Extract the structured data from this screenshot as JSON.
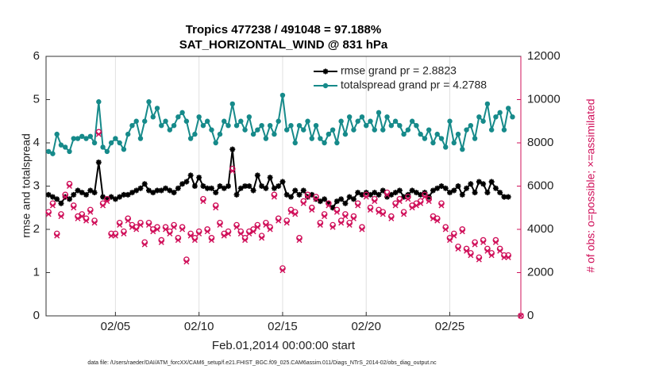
{
  "chart_data": {
    "type": "line",
    "title": "Tropics 477238 / 491048 = 97.188%",
    "subtitle": "SAT_HORIZONTAL_WIND @ 831 hPa",
    "xlabel": "Feb.01,2014 00:00:00 start",
    "ylabel": "rmse and totalspread",
    "y2label": "# of obs: o=possible; ×=assimilated",
    "footnote": "data file: /Users/raeder/DAI/ATM_forcXX/CAM6_setup/f.e21.FHIST_BGC.f09_025.CAM6assim.011/Diags_NTrS_2014-02/obs_diag_output.nc",
    "grid": "x",
    "legend": "top-right",
    "xlim": [
      0.85,
      29.25
    ],
    "xticks": [
      {
        "value": 5,
        "label": "02/05"
      },
      {
        "value": 10,
        "label": "02/10"
      },
      {
        "value": 15,
        "label": "02/15"
      },
      {
        "value": 20,
        "label": "02/20"
      },
      {
        "value": 25,
        "label": "02/25"
      }
    ],
    "ylim": [
      0,
      6
    ],
    "yticks": [
      0,
      1,
      2,
      3,
      4,
      5,
      6
    ],
    "y2lim": [
      0,
      12000
    ],
    "y2ticks": [
      0,
      2000,
      4000,
      6000,
      8000,
      10000,
      12000
    ],
    "x": [
      1,
      1.25,
      1.5,
      1.75,
      2,
      2.25,
      2.5,
      2.75,
      3,
      3.25,
      3.5,
      3.75,
      4,
      4.25,
      4.5,
      4.75,
      5,
      5.25,
      5.5,
      5.75,
      6,
      6.25,
      6.5,
      6.75,
      7,
      7.25,
      7.5,
      7.75,
      8,
      8.25,
      8.5,
      8.75,
      9,
      9.25,
      9.5,
      9.75,
      10,
      10.25,
      10.5,
      10.75,
      11,
      11.25,
      11.5,
      11.75,
      12,
      12.25,
      12.5,
      12.75,
      13,
      13.25,
      13.5,
      13.75,
      14,
      14.25,
      14.5,
      14.75,
      15,
      15.25,
      15.5,
      15.75,
      16,
      16.25,
      16.5,
      16.75,
      17,
      17.25,
      17.5,
      17.75,
      18,
      18.25,
      18.5,
      18.75,
      19,
      19.25,
      19.5,
      19.75,
      20,
      20.25,
      20.5,
      20.75,
      21,
      21.25,
      21.5,
      21.75,
      22,
      22.25,
      22.5,
      22.75,
      23,
      23.25,
      23.5,
      23.75,
      24,
      24.25,
      24.5,
      24.75,
      25,
      25.25,
      25.5,
      25.75,
      26,
      26.25,
      26.5,
      26.75,
      27,
      27.25,
      27.5,
      27.75,
      28,
      28.25,
      28.5,
      28.75,
      29,
      29.25
    ],
    "series": [
      {
        "name": "rmse grand pr = 2.8823",
        "color": "#000000",
        "marker": "star",
        "line": true,
        "values": [
          2.8,
          2.75,
          2.7,
          2.6,
          2.75,
          2.7,
          2.8,
          2.9,
          2.85,
          2.8,
          2.9,
          2.85,
          3.55,
          2.75,
          2.7,
          2.75,
          2.7,
          2.75,
          2.8,
          2.8,
          2.85,
          2.9,
          2.95,
          3.05,
          2.9,
          2.85,
          2.9,
          2.9,
          2.95,
          2.9,
          2.85,
          2.95,
          3.05,
          3.1,
          3.25,
          3.0,
          3.2,
          3.0,
          2.95,
          2.95,
          2.85,
          3.0,
          2.95,
          3.0,
          3.85,
          2.8,
          2.95,
          3.0,
          3.0,
          2.9,
          3.25,
          3.0,
          2.95,
          3.2,
          2.95,
          3.0,
          3.1,
          2.8,
          2.75,
          2.9,
          2.8,
          2.9,
          2.75,
          2.8,
          2.7,
          2.65,
          2.7,
          2.6,
          2.5,
          2.65,
          2.7,
          2.6,
          2.75,
          2.7,
          2.85,
          2.8,
          2.85,
          2.8,
          2.85,
          2.8,
          2.9,
          2.75,
          2.8,
          2.85,
          2.9,
          2.75,
          2.8,
          2.9,
          2.85,
          2.8,
          2.85,
          2.75,
          2.9,
          2.95,
          3.0,
          2.95,
          2.85,
          2.9,
          3.0,
          2.8,
          2.95,
          3.05,
          2.85,
          3.1,
          3.05,
          2.85,
          3.1,
          2.95,
          2.85,
          2.75,
          2.75,
          null,
          null,
          null
        ]
      },
      {
        "name": "totalspread grand pr = 4.2788",
        "color": "#168a8a",
        "marker": "circle",
        "line": true,
        "values": [
          3.8,
          3.75,
          4.2,
          3.95,
          3.9,
          3.8,
          4.1,
          4.1,
          4.15,
          4.1,
          4.15,
          4.0,
          4.95,
          3.9,
          3.8,
          4.0,
          4.1,
          4.0,
          3.85,
          4.2,
          4.4,
          4.5,
          4.1,
          4.5,
          4.95,
          4.6,
          4.8,
          4.4,
          4.5,
          4.3,
          4.4,
          4.6,
          4.7,
          4.5,
          4.1,
          4.2,
          4.6,
          4.4,
          4.5,
          4.3,
          4.0,
          4.2,
          4.5,
          4.4,
          4.9,
          4.4,
          4.5,
          4.3,
          4.6,
          4.2,
          4.3,
          4.4,
          4.1,
          4.4,
          4.2,
          4.5,
          5.1,
          4.3,
          4.4,
          4.0,
          4.4,
          4.3,
          4.5,
          4.1,
          4.4,
          4.1,
          4.0,
          4.2,
          4.3,
          4.0,
          4.5,
          4.2,
          4.6,
          4.3,
          4.5,
          4.6,
          4.4,
          4.5,
          4.3,
          4.7,
          4.3,
          4.6,
          4.4,
          4.5,
          4.4,
          4.2,
          4.3,
          4.5,
          4.4,
          4.2,
          4.1,
          4.3,
          4.0,
          4.2,
          4.1,
          3.9,
          4.5,
          4.0,
          4.2,
          3.85,
          4.3,
          4.4,
          4.1,
          4.6,
          4.5,
          4.9,
          4.3,
          4.6,
          4.7,
          4.3,
          4.8,
          4.6,
          null,
          null
        ]
      },
      {
        "color": "#d0105a",
        "marker": "circle-open",
        "line": false,
        "axis": "y2",
        "values": [
          4800,
          5200,
          3800,
          4700,
          5600,
          6100,
          5100,
          4600,
          4700,
          4500,
          4900,
          4400,
          8500,
          5200,
          5400,
          3800,
          3800,
          4300,
          3900,
          4500,
          4200,
          4100,
          4300,
          3400,
          4300,
          4000,
          4100,
          3500,
          4100,
          3900,
          4200,
          3600,
          4100,
          2600,
          3800,
          3600,
          3900,
          5400,
          4000,
          3600,
          5100,
          4300,
          3800,
          3900,
          6800,
          4200,
          3900,
          3600,
          3900,
          4000,
          4200,
          3700,
          4300,
          4100,
          5600,
          4500,
          2200,
          4400,
          4900,
          4800,
          3600,
          5300,
          5600,
          5000,
          5500,
          4300,
          4700,
          5200,
          4200,
          4900,
          4400,
          4700,
          4300,
          4600,
          5200,
          4100,
          5600,
          5000,
          5400,
          4900,
          4800,
          5700,
          4600,
          5200,
          5400,
          4800,
          5500,
          5100,
          5200,
          5300,
          5600,
          5400,
          4600,
          4500,
          5200,
          4100,
          3600,
          3800,
          3200,
          4000,
          3100,
          2900,
          3400,
          2700,
          3500,
          3100,
          2900,
          3500,
          3100,
          2800,
          2800,
          null,
          null,
          0
        ]
      },
      {
        "color": "#d0105a",
        "marker": "x",
        "line": false,
        "axis": "y2",
        "values": [
          4700,
          5100,
          3700,
          4600,
          5500,
          6000,
          5000,
          4500,
          4600,
          4400,
          4800,
          4300,
          8400,
          5100,
          5300,
          3700,
          3700,
          4200,
          3800,
          4400,
          4100,
          4000,
          4200,
          3300,
          4200,
          3900,
          4000,
          3400,
          4000,
          3800,
          4100,
          3500,
          4000,
          2500,
          3700,
          3500,
          3800,
          5300,
          3900,
          3500,
          5000,
          4200,
          3700,
          3800,
          6700,
          4100,
          3800,
          3500,
          3800,
          3900,
          4100,
          3600,
          4200,
          4000,
          5500,
          4400,
          2100,
          4300,
          4800,
          4700,
          3500,
          5200,
          5500,
          4900,
          5400,
          4200,
          4600,
          5100,
          4100,
          4800,
          4300,
          4600,
          4200,
          4500,
          5100,
          4000,
          5500,
          4900,
          5300,
          4800,
          4700,
          5600,
          4500,
          5100,
          5300,
          4700,
          5400,
          5000,
          5100,
          5200,
          5500,
          5300,
          4500,
          4400,
          5100,
          4000,
          3500,
          3700,
          3100,
          3900,
          3000,
          2800,
          3300,
          2600,
          3400,
          3000,
          2800,
          3400,
          3000,
          2700,
          2700,
          null,
          null,
          0
        ]
      }
    ]
  }
}
